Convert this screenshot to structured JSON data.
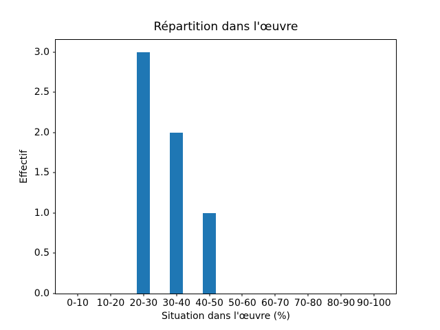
{
  "chart_data": {
    "type": "bar",
    "title": "Répartition dans l'œuvre",
    "xlabel": "Situation dans l'œuvre (%)",
    "ylabel": "Effectif",
    "categories": [
      "0-10",
      "10-20",
      "20-30",
      "30-40",
      "40-50",
      "50-60",
      "60-70",
      "70-80",
      "80-90",
      "90-100"
    ],
    "values": [
      0,
      0,
      3,
      2,
      1,
      0,
      0,
      0,
      0,
      0
    ],
    "yticks": [
      0.0,
      0.5,
      1.0,
      1.5,
      2.0,
      2.5,
      3.0
    ],
    "ytick_labels": [
      "0.0",
      "0.5",
      "1.0",
      "1.5",
      "2.0",
      "2.5",
      "3.0"
    ],
    "ylim": [
      0,
      3.15
    ],
    "xlim": [
      -0.67,
      9.67
    ],
    "bar_width": 0.4,
    "bar_color": "#1f77b4",
    "grid": false,
    "legend": null
  }
}
